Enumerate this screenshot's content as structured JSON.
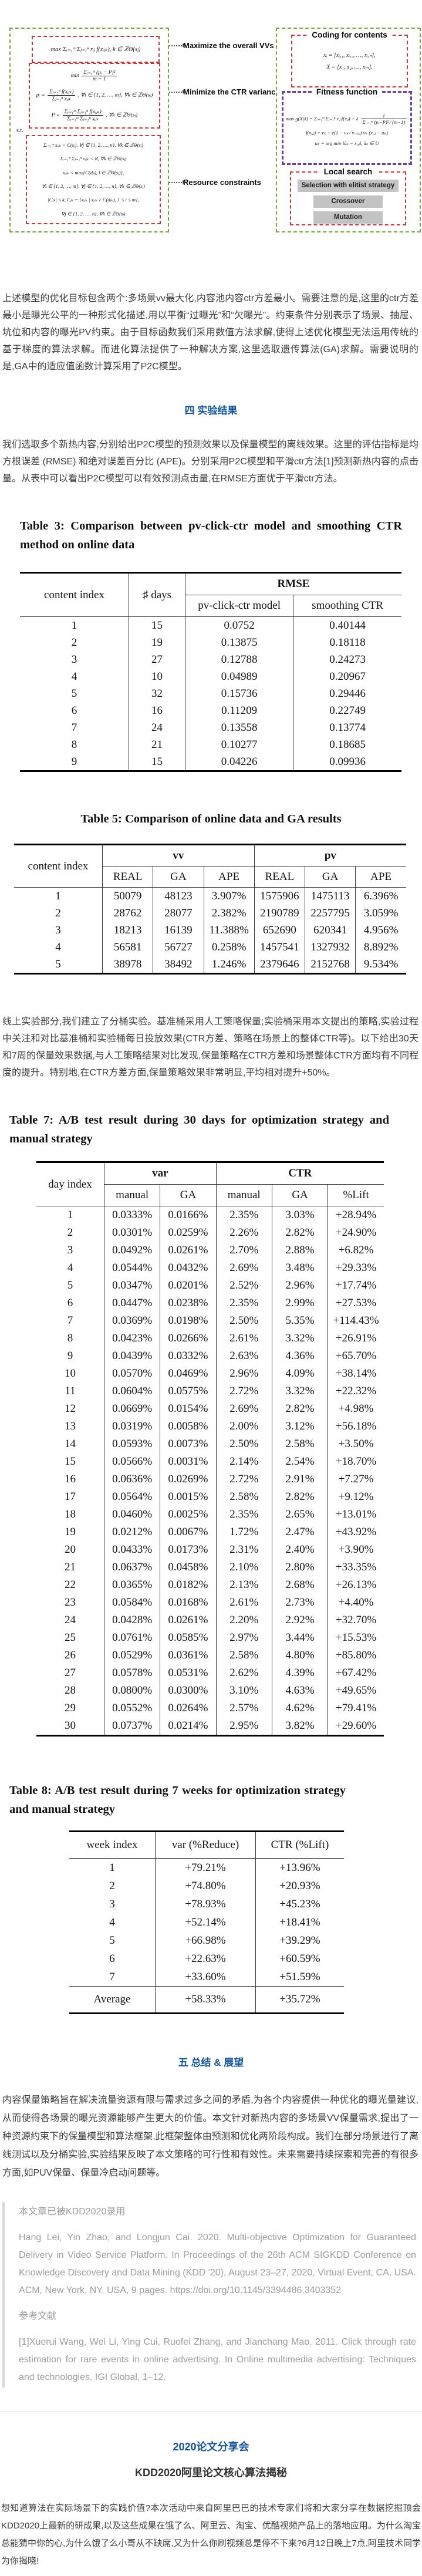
{
  "figure": {
    "left": {
      "objective1": "max Σᵢ₌₁ᵐ Σⱼ₌₁ⁿ rᵢⱼ f(xᵢⱼₖ), k ∈ ℤΘ(sⱼ)",
      "min_prefix": "min",
      "min_num": "Σᵢ₌₁ᵐ (pᵢ − P)²",
      "min_den": "m − 1",
      "pi_lhs": "pᵢ =",
      "pi_num": "Σⱼ₌₁ⁿ f(xᵢⱼₖ)",
      "pi_den": "Σⱼ₌₁ⁿ xᵢⱼₖ",
      "pi_tail": ", ∀i ∈ {1, 2, …, m}, ∀k ∈ ℤΘ(sⱼ)",
      "P_lhs": "P =",
      "P_num": "Σᵢ₌₁ᵐ Σⱼ₌₁ⁿ f(xᵢⱼₖ)",
      "P_den": "Σᵢ₌₁ᵐ Σⱼ₌₁ⁿ xᵢⱼₖ",
      "P_tail": ", ∀k ∈ ℤΘ(sⱼ)",
      "st": "s.t.",
      "constraints": [
        "Σᵢ₌₁ᵐ xᵢⱼₖ < C(sⱼ), ∀j ∈ {1, 2, …, n}, ∀k ∈ ℤΘ(sⱼ)",
        "Σᵢ₌₁ᵐ Σⱼ₌₁ⁿ xᵢⱼₖ < R, ∀k ∈ ℤΘ(sⱼ)",
        "xᵢⱼₖ < max{C(dⱼₗ), l ∈ ℤΘ(sⱼ)},",
        "∀i ∈ {1, 2, …, m}, ∀j ∈ {1, 2, …, n}, ∀k ∈ ℤΘ(sⱼ)",
        "|Cⱼₖ| ≤ k, Cⱼₖ = {xᵢⱼₖ | xᵢⱼₖ ≥ C(dⱼₖ), 1 ≤ i ≤ m},",
        "∀j ∈ {1, 2, …, n}, ∀k ∈ ℤΘ(sⱼ)"
      ]
    },
    "labels": {
      "maximize": "Maximize the overall VVs",
      "minimize": "Minimize the CTR variance",
      "resource": "Resource constraints"
    },
    "right": {
      "coding_title": "Coding for contents",
      "coding_lines": [
        "xᵢ = [xᵢ,₁, xᵢ,₂, …, xᵢ,ₙ],",
        "X = [x₁, x₂, …, xₘ]."
      ],
      "fitness_title": "Fitness function",
      "fit1_lhs": "max g(X|λ) = Σᵢ₌₁ᵐ Σⱼ₌₁ⁿ rᵢⱼ f(xᵢⱼ) + λ",
      "fit1_num": "1",
      "fit1_den": "Σᵢ₌₁ᵐ (pᵢ−P)² ∕ (m−1)",
      "fit2": "f(xᵢ,ⱼ) = vₖ + r(1 − vₖ ∕ vₘₐₓ) vₖ (xᵢ,ⱼ − uₖ)",
      "fit3": "uₖ = arg min ‖ũₖ − xᵢ,ⱼ‖, ũₖ ∈ U",
      "local_title": "Local search",
      "buttons": [
        "Selection with elitist strategy",
        "Crossover",
        "Mutation"
      ]
    }
  },
  "headings": {
    "sec4": "四  实验结果",
    "sec5": "五  总结 & 展望",
    "share1": "2020论文分享会",
    "share2": "KDD2020阿里论文核心算法揭秘"
  },
  "paragraphs": {
    "p1": "上述模型的优化目标包含两个:多场景vv最大化,内容池内容ctr方差最小。需要注意的是,这里的ctr方差最小是曝光公平的一种形式化描述,用以平衡“过曝光”和“欠曝光”。约束条件分别表示了场景、抽屉、坑位和内容的曝光PV约束。由于目标函数我们采用数值方法求解,使得上述优化模型无法运用传统的基于梯度的算法求解。而进化算法提供了一种解决方案,这里选取遗传算法(GA)求解。需要说明的是,GA中的适应值函数计算采用了P2C模型。",
    "p2": "我们选取多个新热内容,分别给出P2C模型的预测效果以及保量模型的离线效果。这里的评估指标是均方根误差 (RMSE) 和绝对误差百分比 (APE)。分别采用P2C模型和平滑ctr方法[1]预测新热内容的点击量。从表中可以看出P2C模型可以有效预测点击量,在RMSE方面优于平滑ctr方法。",
    "p3": "线上实验部分,我们建立了分桶实验。基准桶采用人工策略保量;实验桶采用本文提出的策略,实验过程中关注和对比基准桶和实验桶每日投放效果(CTR方差、策略在场景上的整体CTR等)。以下给出30天和7周的保量效果数据,与人工策略结果对比发现,保量策略在CTR方差和场景整体CTR方面均有不同程度的提升。特别地,在CTR方差方面,保量策略效果非常明显,平均相对提升+50%。",
    "p4": "内容保量策略旨在解决流量资源有限与需求过多之间的矛盾,为各个内容提供一种优化的曝光量建议,从而使得各场景的曝光资源能够产生更大的价值。本文针对新热内容的多场景VV保量需求,提出了一种资源约束下的保量模型和算法框架,此框架整体由预测和优化两阶段构成。我们在部分场景进行了离线测试以及分桶实验,实验结果反映了本文策略的可行性和有效性。未来需要持续探索和完善的有很多方面,如PUV保量、保量冷启动问题等。",
    "p5": "想知道算法在实际场景下的实践价值?本次活动中来自阿里巴巴的技术专家们将和大家分享在数据挖掘顶会KDD2020上最新的研成果,以及这些成果在饿了么、阿里云、淘宝、优酷视频产品上的落地应用。为什么淘宝总能猜中你的心,为什么饿了么小哥从不缺席,又为什么你刷视频总是停不下来?6月12日晚上7点,阿里技术同学为你揭晓!"
  },
  "tables": {
    "t3": {
      "caption": "Table 3: Comparison between pv-click-ctr model and smoothing CTR method on online data",
      "headers": {
        "col1": "content index",
        "col2": "♯ days",
        "group": "RMSE",
        "sub1": "pv-click-ctr model",
        "sub2": "smoothing CTR"
      },
      "rows": [
        [
          "1",
          "15",
          "0.0752",
          "0.40144"
        ],
        [
          "2",
          "19",
          "0.13875",
          "0.18118"
        ],
        [
          "3",
          "27",
          "0.12788",
          "0.24273"
        ],
        [
          "4",
          "10",
          "0.04989",
          "0.20967"
        ],
        [
          "5",
          "32",
          "0.15736",
          "0.29446"
        ],
        [
          "6",
          "16",
          "0.11209",
          "0.22749"
        ],
        [
          "7",
          "24",
          "0.13558",
          "0.13774"
        ],
        [
          "8",
          "21",
          "0.10277",
          "0.18685"
        ],
        [
          "9",
          "15",
          "0.04226",
          "0.09936"
        ]
      ]
    },
    "t5": {
      "caption": "Table 5: Comparison of online data and GA results",
      "headers": {
        "col1": "content index",
        "group1": "vv",
        "group2": "pv",
        "sub": [
          "REAL",
          "GA",
          "APE",
          "REAL",
          "GA",
          "APE"
        ]
      },
      "rows": [
        [
          "1",
          "50079",
          "48123",
          "3.907%",
          "1575906",
          "1475113",
          "6.396%"
        ],
        [
          "2",
          "28762",
          "28077",
          "2.382%",
          "2190789",
          "2257795",
          "3.059%"
        ],
        [
          "3",
          "18213",
          "16139",
          "11.388%",
          "652690",
          "620341",
          "4.956%"
        ],
        [
          "4",
          "56581",
          "56727",
          "0.258%",
          "1457541",
          "1327932",
          "8.892%"
        ],
        [
          "5",
          "38978",
          "38492",
          "1.246%",
          "2379646",
          "2152768",
          "9.534%"
        ]
      ]
    },
    "t7": {
      "caption": "Table 7: A/B test result during 30 days for optimization strategy and manual strategy",
      "headers": {
        "col1": "day index",
        "group1": "var",
        "group2": "CTR",
        "sub": [
          "manual",
          "GA",
          "manual",
          "GA",
          "%Lift"
        ]
      },
      "rows": [
        [
          "1",
          "0.0333%",
          "0.0166%",
          "2.35%",
          "3.03%",
          "+28.94%"
        ],
        [
          "2",
          "0.0301%",
          "0.0259%",
          "2.26%",
          "2.82%",
          "+24.90%"
        ],
        [
          "3",
          "0.0492%",
          "0.0261%",
          "2.70%",
          "2.88%",
          "+6.82%"
        ],
        [
          "4",
          "0.0544%",
          "0.0432%",
          "2.69%",
          "3.48%",
          "+29.33%"
        ],
        [
          "5",
          "0.0347%",
          "0.0201%",
          "2.52%",
          "2.96%",
          "+17.74%"
        ],
        [
          "6",
          "0.0447%",
          "0.0238%",
          "2.35%",
          "2.99%",
          "+27.53%"
        ],
        [
          "7",
          "0.0369%",
          "0.0198%",
          "2.50%",
          "5.35%",
          "+114.43%"
        ],
        [
          "8",
          "0.0423%",
          "0.0266%",
          "2.61%",
          "3.32%",
          "+26.91%"
        ],
        [
          "9",
          "0.0439%",
          "0.0332%",
          "2.63%",
          "4.36%",
          "+65.70%"
        ],
        [
          "10",
          "0.0570%",
          "0.0469%",
          "2.96%",
          "4.09%",
          "+38.14%"
        ],
        [
          "11",
          "0.0604%",
          "0.0575%",
          "2.72%",
          "3.32%",
          "+22.32%"
        ],
        [
          "12",
          "0.0669%",
          "0.0154%",
          "2.69%",
          "2.82%",
          "+4.98%"
        ],
        [
          "13",
          "0.0319%",
          "0.0058%",
          "2.00%",
          "3.12%",
          "+56.18%"
        ],
        [
          "14",
          "0.0593%",
          "0.0073%",
          "2.50%",
          "2.58%",
          "+3.50%"
        ],
        [
          "15",
          "0.0566%",
          "0.0031%",
          "2.14%",
          "2.54%",
          "+18.70%"
        ],
        [
          "16",
          "0.0636%",
          "0.0269%",
          "2.72%",
          "2.91%",
          "+7.27%"
        ],
        [
          "17",
          "0.0564%",
          "0.0015%",
          "2.58%",
          "2.82%",
          "+9.12%"
        ],
        [
          "18",
          "0.0460%",
          "0.0025%",
          "2.35%",
          "2.65%",
          "+13.01%"
        ],
        [
          "19",
          "0.0212%",
          "0.0067%",
          "1.72%",
          "2.47%",
          "+43.92%"
        ],
        [
          "20",
          "0.0433%",
          "0.0173%",
          "2.31%",
          "2.40%",
          "+3.90%"
        ],
        [
          "21",
          "0.0637%",
          "0.0458%",
          "2.10%",
          "2.80%",
          "+33.35%"
        ],
        [
          "22",
          "0.0365%",
          "0.0182%",
          "2.13%",
          "2.68%",
          "+26.13%"
        ],
        [
          "23",
          "0.0584%",
          "0.0168%",
          "2.61%",
          "2.73%",
          "+4.40%"
        ],
        [
          "24",
          "0.0428%",
          "0.0261%",
          "2.20%",
          "2.92%",
          "+32.70%"
        ],
        [
          "25",
          "0.0761%",
          "0.0585%",
          "2.97%",
          "3.44%",
          "+15.53%"
        ],
        [
          "26",
          "0.0529%",
          "0.0361%",
          "2.58%",
          "4.80%",
          "+85.80%"
        ],
        [
          "27",
          "0.0578%",
          "0.0531%",
          "2.62%",
          "4.39%",
          "+67.42%"
        ],
        [
          "28",
          "0.0800%",
          "0.0300%",
          "3.10%",
          "4.63%",
          "+49.65%"
        ],
        [
          "29",
          "0.0552%",
          "0.0264%",
          "2.57%",
          "4.62%",
          "+79.41%"
        ],
        [
          "30",
          "0.0737%",
          "0.0214%",
          "2.95%",
          "3.82%",
          "+29.60%"
        ]
      ]
    },
    "t8": {
      "caption": "Table 8: A/B test result during 7 weeks for optimization strategy and manual strategy",
      "headers": [
        "week index",
        "var (%Reduce)",
        "CTR (%Lift)"
      ],
      "rows": [
        [
          "1",
          "+79.21%",
          "+13.96%"
        ],
        [
          "2",
          "+74.80%",
          "+20.93%"
        ],
        [
          "3",
          "+78.93%",
          "+45.23%"
        ],
        [
          "4",
          "+52.14%",
          "+18.41%"
        ],
        [
          "5",
          "+66.98%",
          "+39.29%"
        ],
        [
          "6",
          "+22.63%",
          "+60.59%"
        ],
        [
          "7",
          "+33.60%",
          "+51.59%"
        ]
      ],
      "average": [
        "Average",
        "+58.33%",
        "+35.72%"
      ]
    }
  },
  "quote": {
    "line1": "本文章已被KDD2020录用",
    "citation": "Hang Lei, Yin Zhao, and Longjun Cai. 2020. Multi-objective Optimization for Guaranteed Delivery in Video Service Platform. In Proceedings of the 26th ACM SIGKDD Conference on Knowledge Discovery and Data Mining (KDD '20), August 23–27, 2020, Virtual Event, CA, USA. ACM, New York, NY, USA, 9 pages. https://doi.org/10.1145/3394486.3403352",
    "ref_title": "参考文献",
    "ref1": "[1]Xuerui Wang, Wei Li, Ying Cui, Ruofei Zhang, and Jianchang Mao. 2011. Click through rate estimation for rare events in online advertising. In Online multimedia advertising: Techniques and technologies. IGI Global, 1–12."
  }
}
